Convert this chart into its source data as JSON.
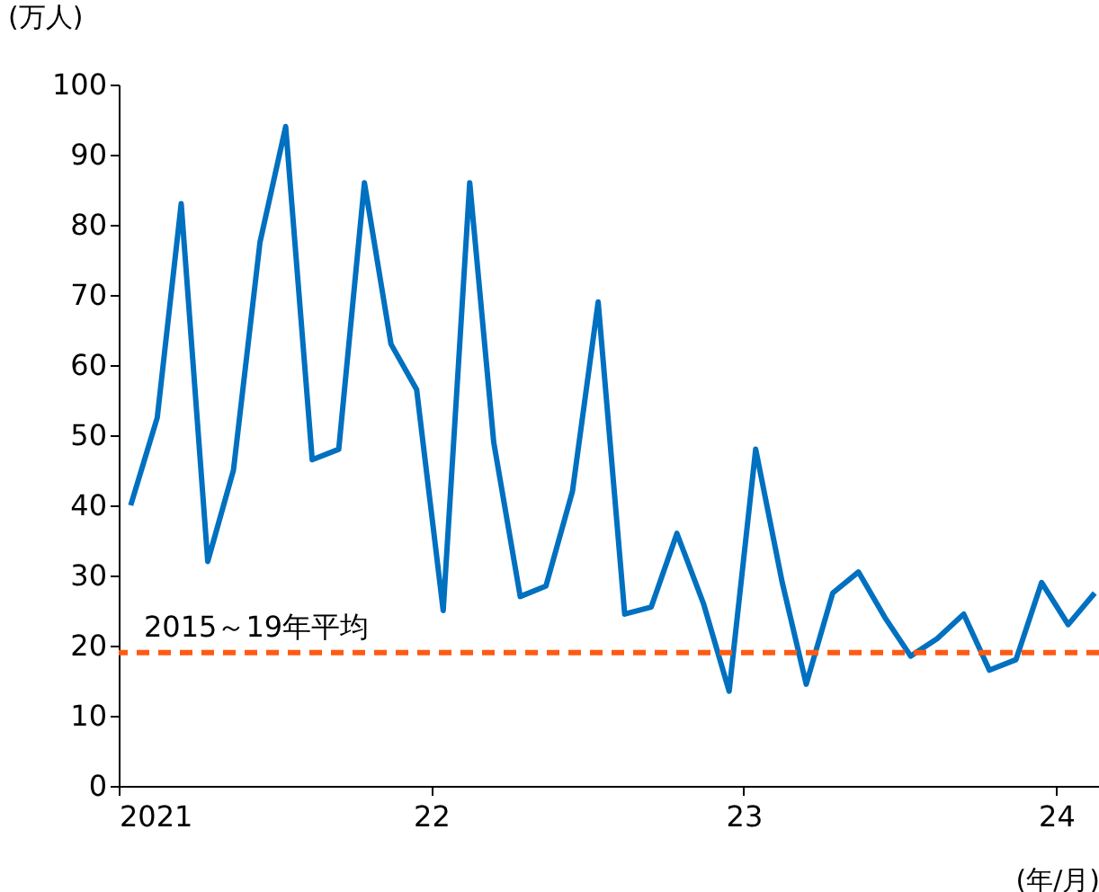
{
  "chart_data": {
    "type": "line",
    "ylabel": "(万人)",
    "xlabel": "(年/月)",
    "x": [
      "2021-01-15",
      "2021-02-15",
      "2021-03-15",
      "2021-04-15",
      "2021-05-15",
      "2021-06-15",
      "2021-07-15",
      "2021-08-15",
      "2021-09-15",
      "2021-10-15",
      "2021-11-15",
      "2021-12-15",
      "2022-01-15",
      "2022-02-15",
      "2022-03-15",
      "2022-04-15",
      "2022-05-15",
      "2022-06-15",
      "2022-07-15",
      "2022-08-15",
      "2022-09-15",
      "2022-10-15",
      "2022-11-15",
      "2022-12-15",
      "2023-01-15",
      "2023-02-15",
      "2023-03-15",
      "2023-04-15",
      "2023-05-15",
      "2023-06-15",
      "2023-07-15",
      "2023-08-15",
      "2023-09-15",
      "2023-10-15",
      "2023-11-15",
      "2023-12-15",
      "2024-01-15",
      "2024-02-15"
    ],
    "series": [
      {
        "color": "#0070c0",
        "values": [
          40,
          52.5,
          83,
          32,
          45,
          77.5,
          94,
          46.5,
          48,
          86,
          63,
          56.5,
          25,
          86,
          49,
          27,
          28.5,
          42,
          69,
          24.5,
          25.5,
          36,
          26,
          13.5,
          48,
          29,
          14.5,
          27.5,
          30.5,
          24,
          18.5,
          21,
          24.5,
          16.5,
          18,
          29,
          23,
          27.5
        ]
      }
    ],
    "xlim": [
      "2021-01-01",
      "2024-02-20"
    ],
    "xticks": [
      {
        "value": "2021-01-01",
        "label": "2021"
      },
      {
        "value": "2022-01-01",
        "label": "22"
      },
      {
        "value": "2023-01-01",
        "label": "23"
      },
      {
        "value": "2024-01-01",
        "label": "24"
      }
    ],
    "ylim": [
      0,
      100
    ],
    "yticks": [
      0,
      10,
      20,
      30,
      40,
      50,
      60,
      70,
      80,
      90,
      100
    ],
    "ref_lines": [
      {
        "axis": "y",
        "value": 19,
        "label": "2015～19年平均",
        "color": "#ff5a14",
        "line_style": "dashed"
      }
    ],
    "grid": false,
    "marker": "none",
    "line_style": "solid"
  }
}
